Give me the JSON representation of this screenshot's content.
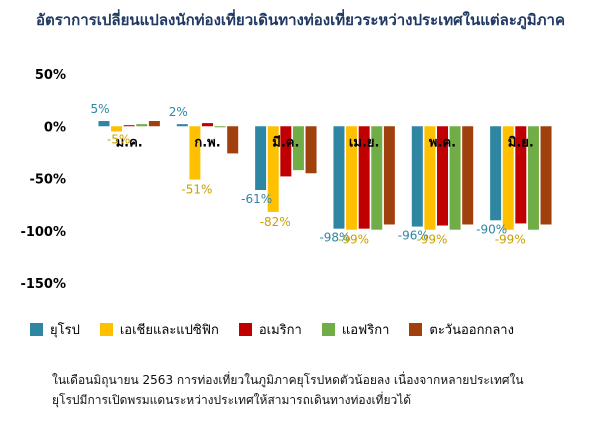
{
  "chart_data": {
    "type": "bar",
    "title": "อัตราการเปลี่ยนแปลงนักท่องเที่ยวเดินทางท่องเที่ยวระหว่างประเทศในแต่ละภูมิภาค",
    "categories": [
      "ม.ค.",
      "ก.พ.",
      "มี.ค.",
      "เม.ย.",
      "พ.ค.",
      "มิ.ย."
    ],
    "series": [
      {
        "name": "ยุโรป",
        "color": "#2e86a3",
        "values": [
          5,
          2,
          -61,
          -98,
          -96,
          -90
        ]
      },
      {
        "name": "เอเชียและแปซิฟิก",
        "color": "#ffc000",
        "values": [
          -5,
          -51,
          -82,
          -99,
          -99,
          -99
        ]
      },
      {
        "name": "อเมริกา",
        "color": "#c00000",
        "values": [
          1,
          3,
          -48,
          -98,
          -95,
          -93
        ]
      },
      {
        "name": "แอฟริกา",
        "color": "#70ad47",
        "values": [
          2,
          -1,
          -42,
          -99,
          -99,
          -99
        ]
      },
      {
        "name": "ตะวันออกกลาง",
        "color": "#a0400d",
        "values": [
          5,
          -26,
          -45,
          -94,
          -94,
          -94
        ]
      }
    ],
    "data_labels": {
      "ยุโรป": [
        "5%",
        "2%",
        "-61%",
        "-98%",
        "-96%",
        "-90%"
      ],
      "เอเชียและแปซิฟิก": [
        "-5%",
        "-51%",
        "-82%",
        "-99%",
        "-99%",
        "-99%"
      ]
    },
    "yticks": [
      50,
      0,
      -50,
      -100,
      -150
    ],
    "ytick_labels": [
      "50%",
      "0%",
      "-50%",
      "-100%",
      "-150%"
    ],
    "ylim": [
      -150,
      50
    ],
    "xlabel": "",
    "ylabel": "",
    "legend_position": "bottom",
    "grid": false
  },
  "note": {
    "line1": "ในเดือนมิถุนายน 2563 การท่องเที่ยวในภูมิภาคยุโรปหดตัวน้อยลง เนื่องจากหลายประเทศใน",
    "line2": "ยุโรปมีการเปิดพรมแดนระหว่างประเทศให้สามารถเดินทางท่องเที่ยวได้"
  }
}
